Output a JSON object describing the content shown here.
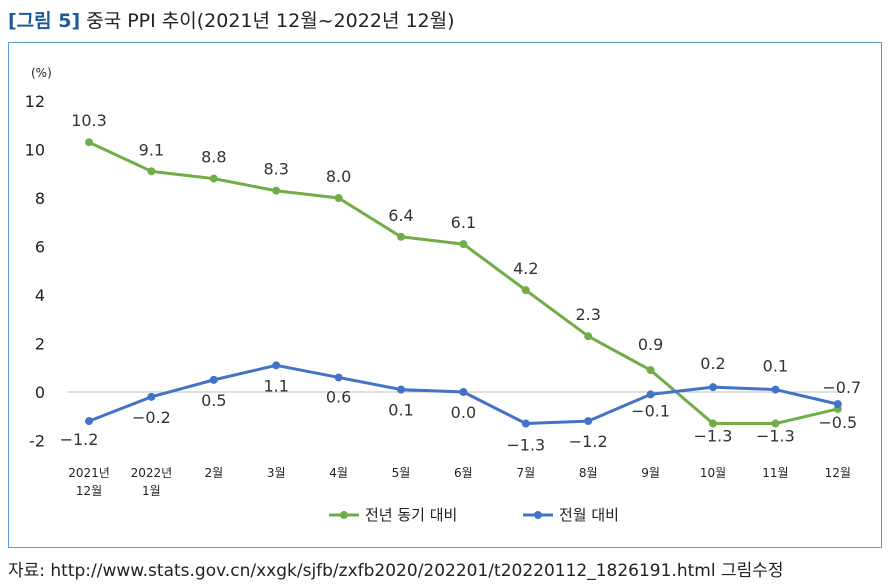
{
  "figure": {
    "number": "[그림 5]",
    "title": "중국 PPI 추이(2021년 12월~2022년 12월)",
    "source": "자료: http://www.stats.gov.cn/xxgk/sjfb/zxfb2020/202201/t20220112_1826191.html 그림수정"
  },
  "chart_data": {
    "type": "line",
    "unit_label": "(%)",
    "categories": [
      [
        "2021년",
        "12월"
      ],
      [
        "2022년",
        "1월"
      ],
      [
        "2월"
      ],
      [
        "3월"
      ],
      [
        "4월"
      ],
      [
        "5월"
      ],
      [
        "6월"
      ],
      [
        "7월"
      ],
      [
        "8월"
      ],
      [
        "9월"
      ],
      [
        "10월"
      ],
      [
        "11월"
      ],
      [
        "12월"
      ]
    ],
    "ylim": [
      -2,
      12
    ],
    "yticks": [
      -2,
      0,
      2,
      4,
      6,
      8,
      10,
      12
    ],
    "grid": false,
    "legend_position": "bottom",
    "series": [
      {
        "name": "전년 동기 대비",
        "color": "#70ad47",
        "values": [
          10.3,
          9.1,
          8.8,
          8.3,
          8.0,
          6.4,
          6.1,
          4.2,
          2.3,
          0.9,
          -1.3,
          -1.3,
          -0.7
        ],
        "labels": [
          "10.3",
          "9.1",
          "8.8",
          "8.3",
          "8.0",
          "6.4",
          "6.1",
          "4.2",
          "2.3",
          "0.9",
          "−1.3",
          "−1.3",
          "−0.7"
        ]
      },
      {
        "name": "전월 대비",
        "color": "#4472c4",
        "values": [
          -1.2,
          -0.2,
          0.5,
          1.1,
          0.6,
          0.1,
          0.0,
          -1.3,
          -1.2,
          -0.1,
          0.2,
          0.1,
          -0.5
        ],
        "labels": [
          "−1.2",
          "−0.2",
          "0.5",
          "1.1",
          "0.6",
          "0.1",
          "0.0",
          "−1.3",
          "−1.2",
          "−0.1",
          "0.2",
          "0.1",
          "−0.5"
        ]
      }
    ]
  }
}
